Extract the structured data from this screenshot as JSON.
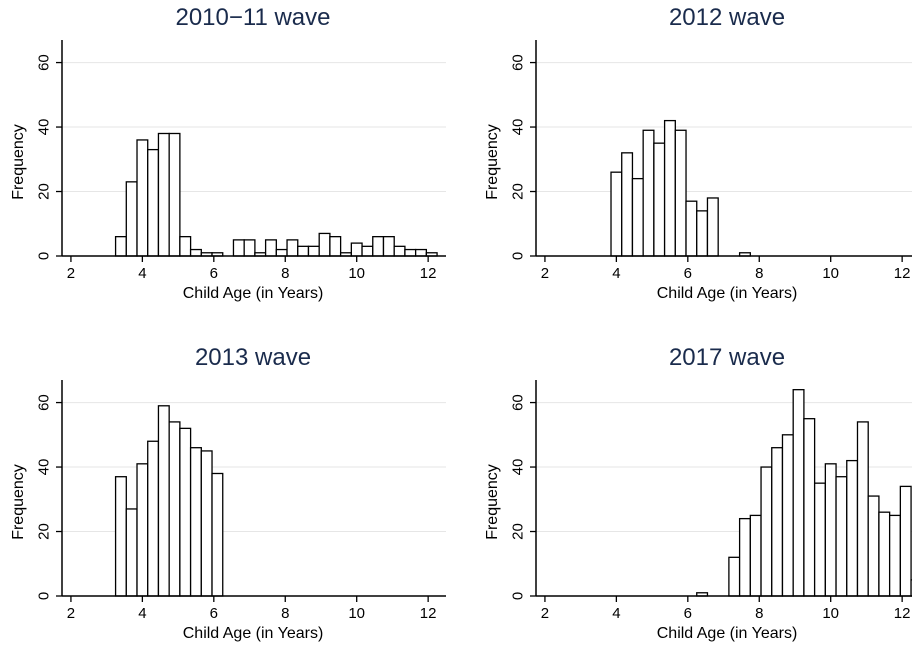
{
  "chart_data": [
    {
      "type": "bar",
      "title": "2010−11 wave",
      "xlabel": "Child Age (in Years)",
      "ylabel": "Frequency",
      "xlim": [
        1.75,
        12.5
      ],
      "ylim": [
        0,
        67
      ],
      "xticks": [
        2,
        4,
        6,
        8,
        10,
        12
      ],
      "yticks": [
        0,
        20,
        40,
        60
      ],
      "grid": true,
      "bin_width": 0.3,
      "bins": [
        {
          "x": 3.25,
          "v": 6
        },
        {
          "x": 3.55,
          "v": 23
        },
        {
          "x": 3.85,
          "v": 36
        },
        {
          "x": 4.15,
          "v": 33
        },
        {
          "x": 4.45,
          "v": 38
        },
        {
          "x": 4.75,
          "v": 38
        },
        {
          "x": 5.05,
          "v": 6
        },
        {
          "x": 5.35,
          "v": 2
        },
        {
          "x": 5.65,
          "v": 1
        },
        {
          "x": 5.95,
          "v": 1
        },
        {
          "x": 6.55,
          "v": 5
        },
        {
          "x": 6.85,
          "v": 5
        },
        {
          "x": 7.15,
          "v": 1
        },
        {
          "x": 7.45,
          "v": 5
        },
        {
          "x": 7.75,
          "v": 2
        },
        {
          "x": 8.05,
          "v": 5
        },
        {
          "x": 8.35,
          "v": 3
        },
        {
          "x": 8.65,
          "v": 3
        },
        {
          "x": 8.95,
          "v": 7
        },
        {
          "x": 9.25,
          "v": 6
        },
        {
          "x": 9.55,
          "v": 1
        },
        {
          "x": 9.85,
          "v": 4
        },
        {
          "x": 10.15,
          "v": 3
        },
        {
          "x": 10.45,
          "v": 6
        },
        {
          "x": 10.75,
          "v": 6
        },
        {
          "x": 11.05,
          "v": 3
        },
        {
          "x": 11.35,
          "v": 2
        },
        {
          "x": 11.65,
          "v": 2
        },
        {
          "x": 11.95,
          "v": 1
        }
      ]
    },
    {
      "type": "bar",
      "title": "2012 wave",
      "xlabel": "Child Age (in Years)",
      "ylabel": "Frequency",
      "xlim": [
        1.75,
        12.5
      ],
      "ylim": [
        0,
        67
      ],
      "xticks": [
        2,
        4,
        6,
        8,
        10,
        12
      ],
      "yticks": [
        0,
        20,
        40,
        60
      ],
      "grid": true,
      "bin_width": 0.3,
      "bins": [
        {
          "x": 3.85,
          "v": 26
        },
        {
          "x": 4.15,
          "v": 32
        },
        {
          "x": 4.45,
          "v": 24
        },
        {
          "x": 4.75,
          "v": 39
        },
        {
          "x": 5.05,
          "v": 35
        },
        {
          "x": 5.35,
          "v": 42
        },
        {
          "x": 5.65,
          "v": 39
        },
        {
          "x": 5.95,
          "v": 17
        },
        {
          "x": 6.25,
          "v": 14
        },
        {
          "x": 6.55,
          "v": 18
        },
        {
          "x": 7.45,
          "v": 1
        }
      ]
    },
    {
      "type": "bar",
      "title": "2013 wave",
      "xlabel": "Child Age (in Years)",
      "ylabel": "Frequency",
      "xlim": [
        1.75,
        12.5
      ],
      "ylim": [
        0,
        67
      ],
      "xticks": [
        2,
        4,
        6,
        8,
        10,
        12
      ],
      "yticks": [
        0,
        20,
        40,
        60
      ],
      "grid": true,
      "bin_width": 0.3,
      "bins": [
        {
          "x": 3.25,
          "v": 37
        },
        {
          "x": 3.55,
          "v": 27
        },
        {
          "x": 3.85,
          "v": 41
        },
        {
          "x": 4.15,
          "v": 48
        },
        {
          "x": 4.45,
          "v": 59
        },
        {
          "x": 4.75,
          "v": 54
        },
        {
          "x": 5.05,
          "v": 52
        },
        {
          "x": 5.35,
          "v": 46
        },
        {
          "x": 5.65,
          "v": 45
        },
        {
          "x": 5.95,
          "v": 38
        }
      ]
    },
    {
      "type": "bar",
      "title": "2017 wave",
      "xlabel": "Child Age (in Years)",
      "ylabel": "Frequency",
      "xlim": [
        1.75,
        12.5
      ],
      "ylim": [
        0,
        67
      ],
      "xticks": [
        2,
        4,
        6,
        8,
        10,
        12
      ],
      "yticks": [
        0,
        20,
        40,
        60
      ],
      "grid": true,
      "bin_width": 0.3,
      "bins": [
        {
          "x": 6.25,
          "v": 1
        },
        {
          "x": 7.15,
          "v": 12
        },
        {
          "x": 7.45,
          "v": 24
        },
        {
          "x": 7.75,
          "v": 25
        },
        {
          "x": 8.05,
          "v": 40
        },
        {
          "x": 8.35,
          "v": 46
        },
        {
          "x": 8.65,
          "v": 50
        },
        {
          "x": 8.95,
          "v": 64
        },
        {
          "x": 9.25,
          "v": 55
        },
        {
          "x": 9.55,
          "v": 35
        },
        {
          "x": 9.85,
          "v": 41
        },
        {
          "x": 10.15,
          "v": 37
        },
        {
          "x": 10.45,
          "v": 42
        },
        {
          "x": 10.75,
          "v": 54
        },
        {
          "x": 11.05,
          "v": 31
        },
        {
          "x": 11.35,
          "v": 26
        },
        {
          "x": 11.65,
          "v": 25
        },
        {
          "x": 11.95,
          "v": 34
        },
        {
          "x": 12.25,
          "v": 5
        }
      ]
    }
  ]
}
